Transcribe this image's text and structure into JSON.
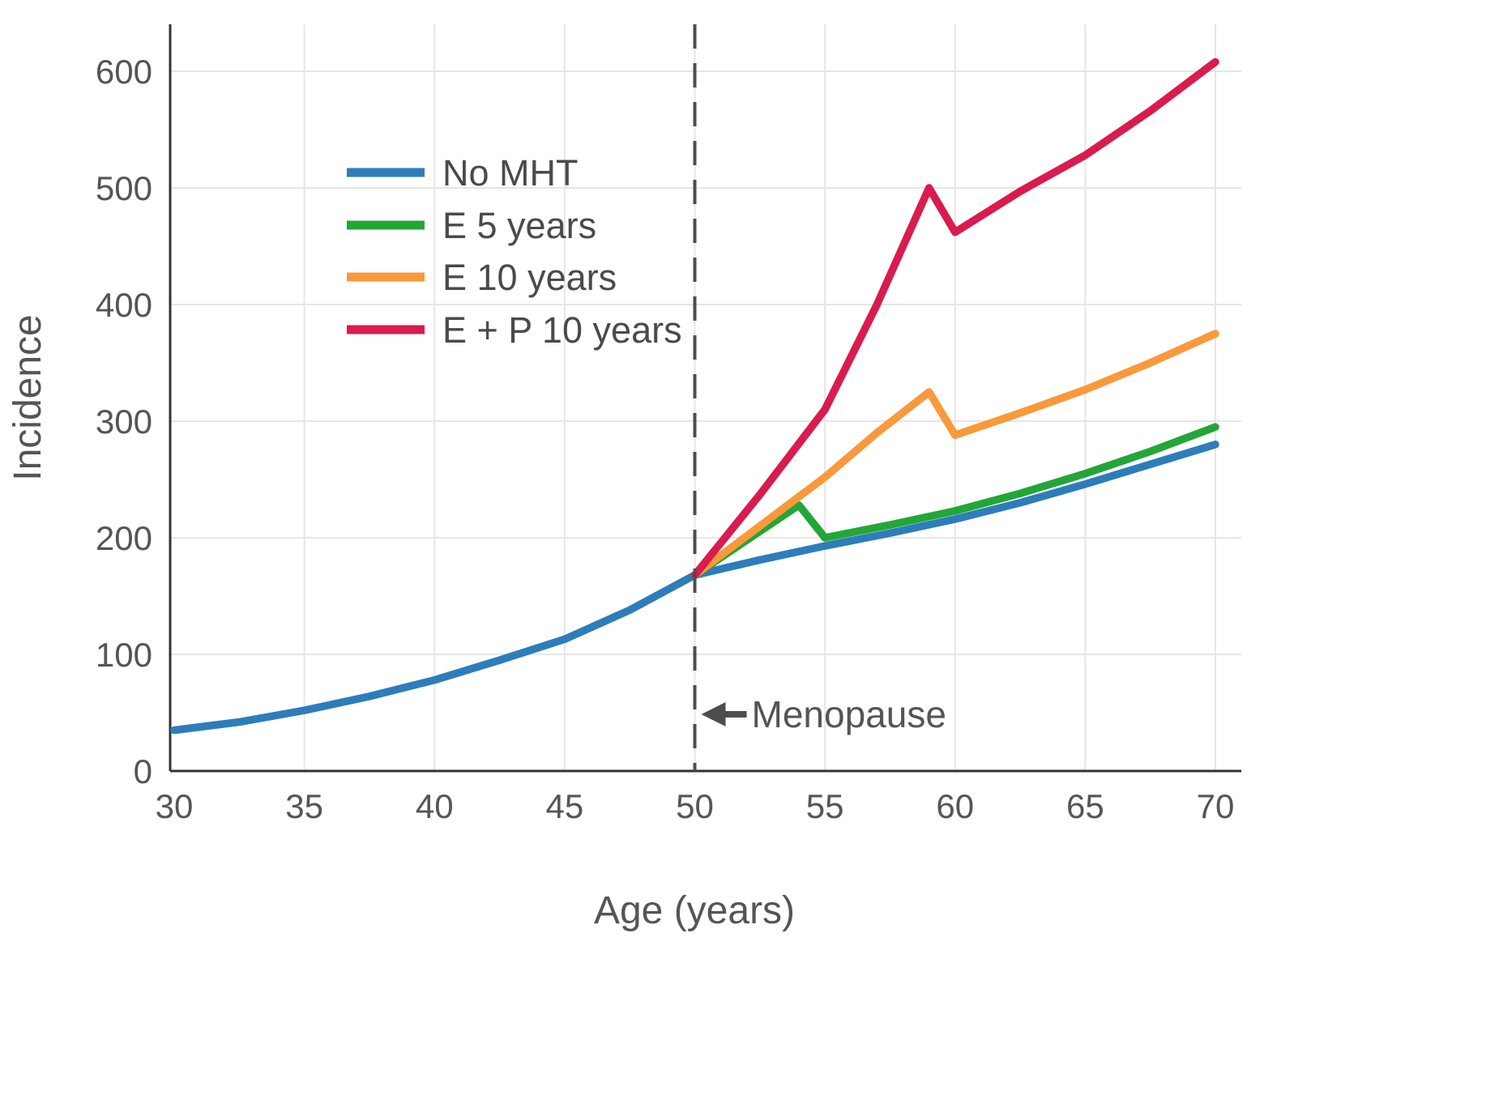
{
  "chart_data": {
    "type": "line",
    "title": "",
    "xlabel": "Age (years)",
    "ylabel": "Incidence",
    "xlim": [
      30,
      70
    ],
    "ylim": [
      0,
      640
    ],
    "x_ticks": [
      30,
      35,
      40,
      45,
      50,
      55,
      60,
      65,
      70
    ],
    "y_ticks": [
      0,
      100,
      200,
      300,
      400,
      500,
      600
    ],
    "grid": true,
    "legend_position": "upper-left-inside",
    "series": [
      {
        "name": "No MHT",
        "color": "#2d7dbb",
        "x": [
          30,
          32.5,
          35,
          37.5,
          40,
          42.5,
          45,
          47.5,
          50,
          52.5,
          55,
          57.5,
          60,
          62.5,
          65,
          67.5,
          70
        ],
        "y": [
          35,
          42,
          52,
          64,
          78,
          95,
          113,
          138,
          168,
          181,
          193,
          204,
          216,
          230,
          246,
          263,
          280
        ]
      },
      {
        "name": "E 5 years",
        "color": "#23a638",
        "x": [
          50,
          54,
          55,
          57.5,
          60,
          62.5,
          65,
          67.5,
          70
        ],
        "y": [
          168,
          228,
          200,
          211,
          223,
          238,
          255,
          274,
          295
        ]
      },
      {
        "name": "E 10 years",
        "color": "#f9993b",
        "x": [
          50,
          52.5,
          55,
          57,
          59,
          60,
          62.5,
          65,
          67.5,
          70
        ],
        "y": [
          168,
          210,
          252,
          290,
          325,
          288,
          307,
          327,
          350,
          375
        ]
      },
      {
        "name": "E + P 10 years",
        "color": "#da1b4e",
        "x": [
          50,
          52.5,
          55,
          57,
          59,
          60,
          62.5,
          65,
          67.5,
          70
        ],
        "y": [
          168,
          237,
          310,
          400,
          500,
          462,
          497,
          528,
          566,
          608
        ]
      }
    ],
    "annotation": {
      "label": "Menopause",
      "x": 50,
      "line_style": "dashed",
      "arrow": "left"
    }
  },
  "styles": {
    "grid_color": "#e6e6e6",
    "axis_color": "#333333",
    "text_color": "#555555",
    "annotation_color": "#4d4d4d",
    "background": "#ffffff"
  }
}
